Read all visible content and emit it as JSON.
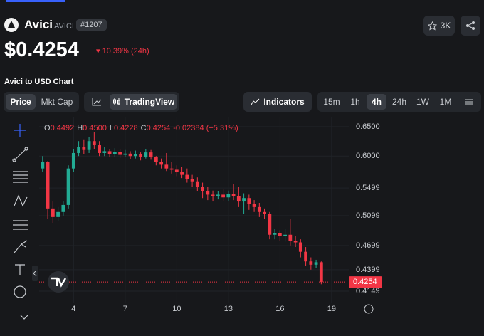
{
  "header": {
    "name": "Avici",
    "symbol": "AVICI",
    "rank": "#1207",
    "watchers": "3K",
    "price": "$0.4254",
    "change": "10.39% (24h)"
  },
  "chart_heading": "Avici to USD Chart",
  "tabs": [
    "Price",
    "Mkt Cap"
  ],
  "tradingview": "TradingView",
  "indicators": "Indicators",
  "intervals": [
    "15m",
    "1h",
    "4h",
    "24h",
    "1W",
    "1M"
  ],
  "chart_data": {
    "type": "candlestick",
    "legend": [
      {
        "label": "O",
        "value": "0.4492"
      },
      {
        "label": "H",
        "value": "0.4500"
      },
      {
        "label": "L",
        "value": "0.4228"
      },
      {
        "label": "C",
        "value": "0.4254"
      }
    ],
    "legend_change": "-0.02384 (−5.31%)",
    "x": [
      2.2,
      2.5,
      2.8,
      3.1,
      3.4,
      3.7,
      4.0,
      4.3,
      4.6,
      4.9,
      5.2,
      5.5,
      5.8,
      6.1,
      6.4,
      6.7,
      7.0,
      7.3,
      7.6,
      7.9,
      8.2,
      8.5,
      8.8,
      9.1,
      9.4,
      9.7,
      10.0,
      10.3,
      10.6,
      10.9,
      11.2,
      11.5,
      11.8,
      12.1,
      12.4,
      12.7,
      13.0,
      13.3,
      13.6,
      13.9,
      14.2,
      14.5,
      14.8,
      15.1,
      15.4,
      15.7,
      16.0,
      16.3,
      16.6,
      16.9,
      17.2,
      17.5,
      17.8,
      18.1,
      18.4
    ],
    "open": [
      0.58,
      0.59,
      0.52,
      0.508,
      0.515,
      0.525,
      0.58,
      0.605,
      0.615,
      0.61,
      0.625,
      0.618,
      0.605,
      0.608,
      0.603,
      0.607,
      0.602,
      0.604,
      0.6,
      0.603,
      0.598,
      0.606,
      0.598,
      0.59,
      0.586,
      0.58,
      0.578,
      0.574,
      0.57,
      0.563,
      0.56,
      0.552,
      0.545,
      0.54,
      0.538,
      0.54,
      0.536,
      0.541,
      0.538,
      0.53,
      0.535,
      0.526,
      0.522,
      0.515,
      0.512,
      0.484,
      0.486,
      0.482,
      0.484,
      0.476,
      0.474,
      0.462,
      0.45,
      0.446,
      0.449
    ],
    "high": [
      0.6,
      0.592,
      0.53,
      0.522,
      0.53,
      0.585,
      0.612,
      0.625,
      0.628,
      0.632,
      0.64,
      0.625,
      0.615,
      0.612,
      0.613,
      0.612,
      0.61,
      0.608,
      0.609,
      0.606,
      0.612,
      0.61,
      0.6,
      0.596,
      0.605,
      0.59,
      0.585,
      0.582,
      0.58,
      0.57,
      0.566,
      0.558,
      0.552,
      0.546,
      0.545,
      0.548,
      0.546,
      0.556,
      0.552,
      0.542,
      0.54,
      0.532,
      0.528,
      0.52,
      0.515,
      0.492,
      0.49,
      0.492,
      0.505,
      0.482,
      0.478,
      0.468,
      0.455,
      0.452,
      0.45
    ],
    "low": [
      0.575,
      0.505,
      0.5,
      0.503,
      0.51,
      0.52,
      0.575,
      0.6,
      0.603,
      0.605,
      0.612,
      0.6,
      0.6,
      0.598,
      0.599,
      0.597,
      0.598,
      0.595,
      0.596,
      0.593,
      0.596,
      0.594,
      0.585,
      0.58,
      0.576,
      0.572,
      0.568,
      0.565,
      0.558,
      0.552,
      0.545,
      0.535,
      0.532,
      0.53,
      0.533,
      0.53,
      0.531,
      0.532,
      0.522,
      0.512,
      0.518,
      0.515,
      0.508,
      0.505,
      0.478,
      0.478,
      0.476,
      0.475,
      0.47,
      0.468,
      0.455,
      0.445,
      0.44,
      0.442,
      0.4228
    ],
    "close": [
      0.59,
      0.52,
      0.508,
      0.515,
      0.525,
      0.58,
      0.605,
      0.615,
      0.61,
      0.625,
      0.618,
      0.605,
      0.608,
      0.603,
      0.607,
      0.602,
      0.604,
      0.6,
      0.603,
      0.598,
      0.606,
      0.598,
      0.59,
      0.586,
      0.58,
      0.578,
      0.574,
      0.57,
      0.563,
      0.56,
      0.552,
      0.545,
      0.54,
      0.538,
      0.54,
      0.536,
      0.541,
      0.538,
      0.53,
      0.535,
      0.526,
      0.522,
      0.515,
      0.512,
      0.484,
      0.486,
      0.482,
      0.484,
      0.476,
      0.474,
      0.462,
      0.45,
      0.446,
      0.449,
      0.4254
    ],
    "up_color": "#22ab94",
    "down_color": "#f23645",
    "last_price": 0.4254,
    "xlim": [
      2.0,
      20.0
    ],
    "xticks": [
      4,
      7,
      10,
      13,
      16,
      19
    ],
    "ylim": [
      0.4022,
      0.6667
    ],
    "log_scale": true,
    "yticks": [
      {
        "value": 0.65,
        "label": "0.6500"
      },
      {
        "value": 0.6,
        "label": "0.6000"
      },
      0.5499,
      0.5099,
      0.4699,
      0.4399,
      0.4149
    ],
    "grid": true
  }
}
